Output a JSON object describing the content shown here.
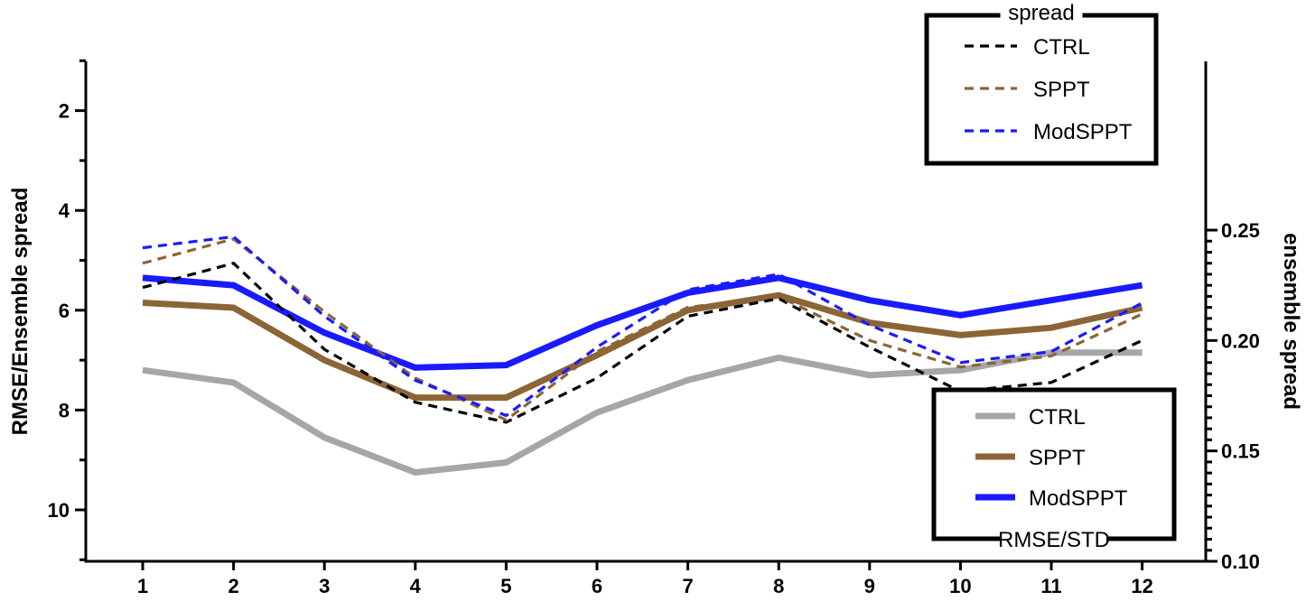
{
  "chart_data": {
    "type": "line",
    "x": [
      1,
      2,
      3,
      4,
      5,
      6,
      7,
      8,
      9,
      10,
      11,
      12
    ],
    "x_ticks": [
      "1",
      "2",
      "3",
      "4",
      "5",
      "6",
      "7",
      "8",
      "9",
      "10",
      "11",
      "12"
    ],
    "left_axis": {
      "label": "RMSE/Ensemble spread",
      "range": [
        11,
        1
      ],
      "inverted": true,
      "ticks": [
        "2",
        "4",
        "6",
        "8",
        "10"
      ]
    },
    "right_axis": {
      "label": "ensemble spread",
      "range": [
        0.1,
        0.25
      ],
      "ticks": [
        "0.10",
        "0.15",
        "0.20",
        "0.25"
      ]
    },
    "series": [
      {
        "name": "CTRL",
        "group": "RMSE/STD",
        "axis": "left",
        "style": "solid",
        "color": "#a6a6aa",
        "values": [
          7.2,
          7.45,
          8.55,
          9.25,
          9.05,
          8.05,
          7.4,
          6.95,
          7.3,
          7.2,
          6.85,
          6.85
        ]
      },
      {
        "name": "SPPT",
        "group": "RMSE/STD",
        "axis": "left",
        "style": "solid",
        "color": "#8c6536",
        "values": [
          5.85,
          5.95,
          7.0,
          7.75,
          7.75,
          6.9,
          6.0,
          5.7,
          6.25,
          6.5,
          6.35,
          5.95
        ]
      },
      {
        "name": "ModSPPT",
        "group": "RMSE/STD",
        "axis": "left",
        "style": "solid",
        "color": "#1a1aff",
        "values": [
          5.35,
          5.5,
          6.45,
          7.15,
          7.1,
          6.3,
          5.65,
          5.35,
          5.8,
          6.1,
          5.8,
          5.5
        ]
      },
      {
        "name": "CTRL",
        "group": "spread",
        "axis": "right",
        "style": "dashed",
        "color": "#000000",
        "values": [
          0.224,
          0.235,
          0.196,
          0.172,
          0.163,
          0.183,
          0.211,
          0.219,
          0.197,
          0.177,
          0.181,
          0.2
        ]
      },
      {
        "name": "SPPT",
        "group": "spread",
        "axis": "right",
        "style": "dashed",
        "color": "#8c6536",
        "values": [
          0.235,
          0.246,
          0.213,
          0.183,
          0.164,
          0.195,
          0.215,
          0.22,
          0.2,
          0.188,
          0.193,
          0.212
        ]
      },
      {
        "name": "ModSPPT",
        "group": "spread",
        "axis": "right",
        "style": "dashed",
        "color": "#1a1aff",
        "values": [
          0.242,
          0.247,
          0.211,
          0.182,
          0.166,
          0.197,
          0.223,
          0.23,
          0.207,
          0.19,
          0.195,
          0.217
        ]
      }
    ],
    "legends": [
      {
        "title": "spread",
        "placement": "top-right",
        "entries": [
          "CTRL",
          "SPPT",
          "ModSPPT"
        ]
      },
      {
        "title": "RMSE/STD",
        "placement": "bottom-right",
        "entries": [
          "CTRL",
          "SPPT",
          "ModSPPT"
        ]
      }
    ],
    "grid": false
  }
}
